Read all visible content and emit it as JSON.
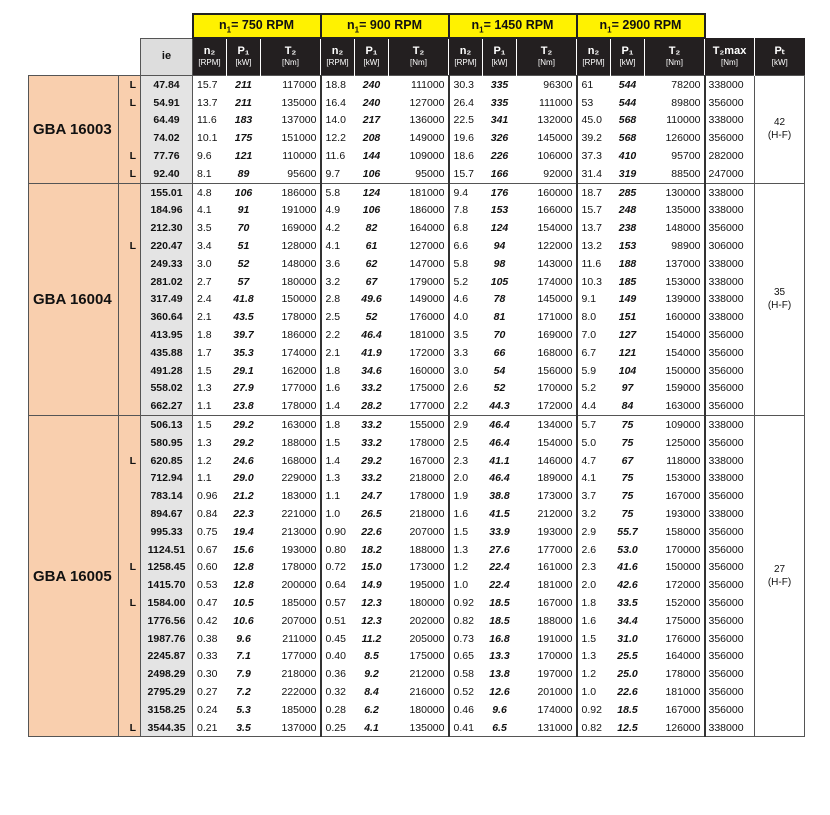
{
  "speed_headers": [
    {
      "prefix": "n",
      "sub": "1",
      "eq": "= ",
      "value": "750",
      "unit": " RPM"
    },
    {
      "prefix": "n",
      "sub": "1",
      "eq": "= ",
      "value": "900",
      "unit": " RPM"
    },
    {
      "prefix": "n",
      "sub": "1",
      "eq": "= ",
      "value": "1450",
      "unit": " RPM"
    },
    {
      "prefix": "n",
      "sub": "1",
      "eq": "= ",
      "value": "2900",
      "unit": " RPM"
    }
  ],
  "column_headers": {
    "ie": "ie",
    "n2": "n₂",
    "n2_unit": "[RPM]",
    "p1": "P₁",
    "p1_unit": "[kW]",
    "t2": "T₂",
    "t2_unit": "[Nm]",
    "t2max": "T₂max",
    "t2max_unit": "[Nm]",
    "pt": "Pₜ",
    "pt_unit": "[kW]"
  },
  "groups": [
    {
      "name": "GBA 16003",
      "pt": "42",
      "pt_note": "(H-F)",
      "rows": [
        [
          "L",
          "47.84",
          "15.7",
          "211",
          "117000",
          "18.8",
          "240",
          "111000",
          "30.3",
          "335",
          "96300",
          "61",
          "544",
          "78200",
          "338000"
        ],
        [
          "L",
          "54.91",
          "13.7",
          "211",
          "135000",
          "16.4",
          "240",
          "127000",
          "26.4",
          "335",
          "111000",
          "53",
          "544",
          "89800",
          "356000"
        ],
        [
          "",
          "64.49",
          "11.6",
          "183",
          "137000",
          "14.0",
          "217",
          "136000",
          "22.5",
          "341",
          "132000",
          "45.0",
          "568",
          "110000",
          "338000"
        ],
        [
          "",
          "74.02",
          "10.1",
          "175",
          "151000",
          "12.2",
          "208",
          "149000",
          "19.6",
          "326",
          "145000",
          "39.2",
          "568",
          "126000",
          "356000"
        ],
        [
          "L",
          "77.76",
          "9.6",
          "121",
          "110000",
          "11.6",
          "144",
          "109000",
          "18.6",
          "226",
          "106000",
          "37.3",
          "410",
          "95700",
          "282000"
        ],
        [
          "L",
          "92.40",
          "8.1",
          "89",
          "95600",
          "9.7",
          "106",
          "95000",
          "15.7",
          "166",
          "92000",
          "31.4",
          "319",
          "88500",
          "247000"
        ]
      ]
    },
    {
      "name": "GBA 16004",
      "pt": "35",
      "pt_note": "(H-F)",
      "rows": [
        [
          "",
          "155.01",
          "4.8",
          "106",
          "186000",
          "5.8",
          "124",
          "181000",
          "9.4",
          "176",
          "160000",
          "18.7",
          "285",
          "130000",
          "338000"
        ],
        [
          "",
          "184.96",
          "4.1",
          "91",
          "191000",
          "4.9",
          "106",
          "186000",
          "7.8",
          "153",
          "166000",
          "15.7",
          "248",
          "135000",
          "338000"
        ],
        [
          "",
          "212.30",
          "3.5",
          "70",
          "169000",
          "4.2",
          "82",
          "164000",
          "6.8",
          "124",
          "154000",
          "13.7",
          "238",
          "148000",
          "356000"
        ],
        [
          "L",
          "220.47",
          "3.4",
          "51",
          "128000",
          "4.1",
          "61",
          "127000",
          "6.6",
          "94",
          "122000",
          "13.2",
          "153",
          "98900",
          "306000"
        ],
        [
          "",
          "249.33",
          "3.0",
          "52",
          "148000",
          "3.6",
          "62",
          "147000",
          "5.8",
          "98",
          "143000",
          "11.6",
          "188",
          "137000",
          "338000"
        ],
        [
          "",
          "281.02",
          "2.7",
          "57",
          "180000",
          "3.2",
          "67",
          "179000",
          "5.2",
          "105",
          "174000",
          "10.3",
          "185",
          "153000",
          "338000"
        ],
        [
          "",
          "317.49",
          "2.4",
          "41.8",
          "150000",
          "2.8",
          "49.6",
          "149000",
          "4.6",
          "78",
          "145000",
          "9.1",
          "149",
          "139000",
          "338000"
        ],
        [
          "",
          "360.64",
          "2.1",
          "43.5",
          "178000",
          "2.5",
          "52",
          "176000",
          "4.0",
          "81",
          "171000",
          "8.0",
          "151",
          "160000",
          "338000"
        ],
        [
          "",
          "413.95",
          "1.8",
          "39.7",
          "186000",
          "2.2",
          "46.4",
          "181000",
          "3.5",
          "70",
          "169000",
          "7.0",
          "127",
          "154000",
          "356000"
        ],
        [
          "",
          "435.88",
          "1.7",
          "35.3",
          "174000",
          "2.1",
          "41.9",
          "172000",
          "3.3",
          "66",
          "168000",
          "6.7",
          "121",
          "154000",
          "356000"
        ],
        [
          "",
          "491.28",
          "1.5",
          "29.1",
          "162000",
          "1.8",
          "34.6",
          "160000",
          "3.0",
          "54",
          "156000",
          "5.9",
          "104",
          "150000",
          "356000"
        ],
        [
          "",
          "558.02",
          "1.3",
          "27.9",
          "177000",
          "1.6",
          "33.2",
          "175000",
          "2.6",
          "52",
          "170000",
          "5.2",
          "97",
          "159000",
          "356000"
        ],
        [
          "",
          "662.27",
          "1.1",
          "23.8",
          "178000",
          "1.4",
          "28.2",
          "177000",
          "2.2",
          "44.3",
          "172000",
          "4.4",
          "84",
          "163000",
          "356000"
        ]
      ]
    },
    {
      "name": "GBA 16005",
      "pt": "27",
      "pt_note": "(H-F)",
      "rows": [
        [
          "",
          "506.13",
          "1.5",
          "29.2",
          "163000",
          "1.8",
          "33.2",
          "155000",
          "2.9",
          "46.4",
          "134000",
          "5.7",
          "75",
          "109000",
          "338000"
        ],
        [
          "",
          "580.95",
          "1.3",
          "29.2",
          "188000",
          "1.5",
          "33.2",
          "178000",
          "2.5",
          "46.4",
          "154000",
          "5.0",
          "75",
          "125000",
          "356000"
        ],
        [
          "L",
          "620.85",
          "1.2",
          "24.6",
          "168000",
          "1.4",
          "29.2",
          "167000",
          "2.3",
          "41.1",
          "146000",
          "4.7",
          "67",
          "118000",
          "338000"
        ],
        [
          "",
          "712.94",
          "1.1",
          "29.0",
          "229000",
          "1.3",
          "33.2",
          "218000",
          "2.0",
          "46.4",
          "189000",
          "4.1",
          "75",
          "153000",
          "338000"
        ],
        [
          "",
          "783.14",
          "0.96",
          "21.2",
          "183000",
          "1.1",
          "24.7",
          "178000",
          "1.9",
          "38.8",
          "173000",
          "3.7",
          "75",
          "167000",
          "356000"
        ],
        [
          "",
          "894.67",
          "0.84",
          "22.3",
          "221000",
          "1.0",
          "26.5",
          "218000",
          "1.6",
          "41.5",
          "212000",
          "3.2",
          "75",
          "193000",
          "338000"
        ],
        [
          "",
          "995.33",
          "0.75",
          "19.4",
          "213000",
          "0.90",
          "22.6",
          "207000",
          "1.5",
          "33.9",
          "193000",
          "2.9",
          "55.7",
          "158000",
          "356000"
        ],
        [
          "",
          "1124.51",
          "0.67",
          "15.6",
          "193000",
          "0.80",
          "18.2",
          "188000",
          "1.3",
          "27.6",
          "177000",
          "2.6",
          "53.0",
          "170000",
          "356000"
        ],
        [
          "L",
          "1258.45",
          "0.60",
          "12.8",
          "178000",
          "0.72",
          "15.0",
          "173000",
          "1.2",
          "22.4",
          "161000",
          "2.3",
          "41.6",
          "150000",
          "356000"
        ],
        [
          "",
          "1415.70",
          "0.53",
          "12.8",
          "200000",
          "0.64",
          "14.9",
          "195000",
          "1.0",
          "22.4",
          "181000",
          "2.0",
          "42.6",
          "172000",
          "356000"
        ],
        [
          "L",
          "1584.00",
          "0.47",
          "10.5",
          "185000",
          "0.57",
          "12.3",
          "180000",
          "0.92",
          "18.5",
          "167000",
          "1.8",
          "33.5",
          "152000",
          "356000"
        ],
        [
          "",
          "1776.56",
          "0.42",
          "10.6",
          "207000",
          "0.51",
          "12.3",
          "202000",
          "0.82",
          "18.5",
          "188000",
          "1.6",
          "34.4",
          "175000",
          "356000"
        ],
        [
          "",
          "1987.76",
          "0.38",
          "9.6",
          "211000",
          "0.45",
          "11.2",
          "205000",
          "0.73",
          "16.8",
          "191000",
          "1.5",
          "31.0",
          "176000",
          "356000"
        ],
        [
          "",
          "2245.87",
          "0.33",
          "7.1",
          "177000",
          "0.40",
          "8.5",
          "175000",
          "0.65",
          "13.3",
          "170000",
          "1.3",
          "25.5",
          "164000",
          "356000"
        ],
        [
          "",
          "2498.29",
          "0.30",
          "7.9",
          "218000",
          "0.36",
          "9.2",
          "212000",
          "0.58",
          "13.8",
          "197000",
          "1.2",
          "25.0",
          "178000",
          "356000"
        ],
        [
          "",
          "2795.29",
          "0.27",
          "7.2",
          "222000",
          "0.32",
          "8.4",
          "216000",
          "0.52",
          "12.6",
          "201000",
          "1.0",
          "22.6",
          "181000",
          "356000"
        ],
        [
          "",
          "3158.25",
          "0.24",
          "5.3",
          "185000",
          "0.28",
          "6.2",
          "180000",
          "0.46",
          "9.6",
          "174000",
          "0.92",
          "18.5",
          "167000",
          "356000"
        ],
        [
          "L",
          "3544.35",
          "0.21",
          "3.5",
          "137000",
          "0.25",
          "4.1",
          "135000",
          "0.41",
          "6.5",
          "131000",
          "0.82",
          "12.5",
          "126000",
          "338000"
        ]
      ]
    }
  ],
  "colors": {
    "group_bg": "#f9cfae",
    "ie_bg": "#e4e4e4",
    "header_bg": "#231f20",
    "speed_bg": "#fff200"
  }
}
